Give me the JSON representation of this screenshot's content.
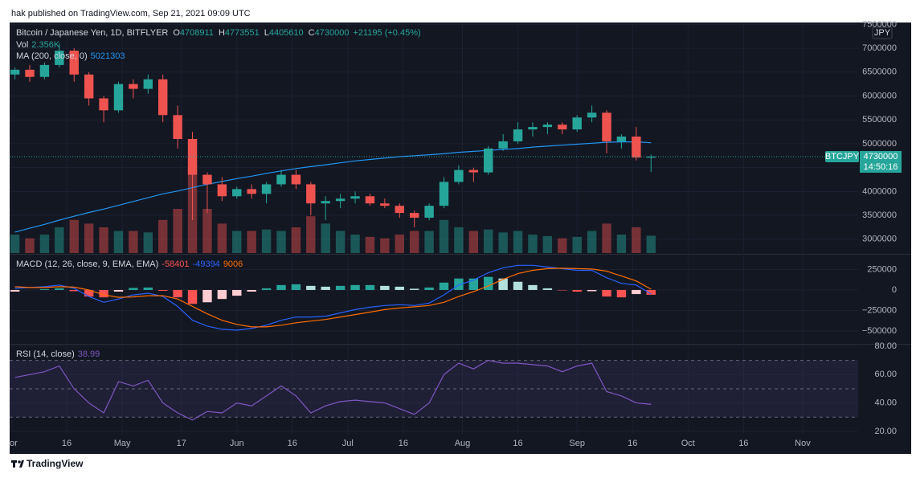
{
  "chart_data": {
    "type": "candlestick",
    "header": {
      "publisher": "hak published on TradingView.com, Sep 21, 2021 09:09 UTC",
      "symbol": "Bitcoin / Japanese Yen, 1D, BITFLYER",
      "ohlc_labels": [
        "O",
        "H",
        "L",
        "C"
      ],
      "change": "+21195 (+0.45%)",
      "ticker": "BTCJPY",
      "countdown": "14:50:16",
      "currency": "JPY",
      "brand": "TradingView"
    },
    "x": [
      "2021-04-02",
      "2021-04-06",
      "2021-04-10",
      "2021-04-14",
      "2021-04-18",
      "2021-04-22",
      "2021-04-26",
      "2021-04-30",
      "2021-05-04",
      "2021-05-08",
      "2021-05-12",
      "2021-05-16",
      "2021-05-20",
      "2021-05-24",
      "2021-05-28",
      "2021-06-01",
      "2021-06-05",
      "2021-06-09",
      "2021-06-13",
      "2021-06-17",
      "2021-06-21",
      "2021-06-25",
      "2021-06-29",
      "2021-07-03",
      "2021-07-07",
      "2021-07-11",
      "2021-07-15",
      "2021-07-19",
      "2021-07-23",
      "2021-07-27",
      "2021-07-31",
      "2021-08-04",
      "2021-08-08",
      "2021-08-12",
      "2021-08-16",
      "2021-08-20",
      "2021-08-24",
      "2021-08-28",
      "2021-09-01",
      "2021-09-05",
      "2021-09-09",
      "2021-09-13",
      "2021-09-17",
      "2021-09-21"
    ],
    "open": [
      6450000,
      6550000,
      6400000,
      6650000,
      6950000,
      6450000,
      5950000,
      5700000,
      6250000,
      6150000,
      6350000,
      5600000,
      5100000,
      4350000,
      4150000,
      3900000,
      4050000,
      3950000,
      4150000,
      4350000,
      4150000,
      3750000,
      3800000,
      3850000,
      3900000,
      3750000,
      3700000,
      3550000,
      3450000,
      3700000,
      4200000,
      4450000,
      4400000,
      4900000,
      5050000,
      5300000,
      5350000,
      5400000,
      5300000,
      5550000,
      5650000,
      5050000,
      5150000,
      4708911
    ],
    "high": [
      6600000,
      6650000,
      6700000,
      7100000,
      7000000,
      6500000,
      6000000,
      6300000,
      6350000,
      6450000,
      6450000,
      5800000,
      5250000,
      4400000,
      4300000,
      4100000,
      4150000,
      4200000,
      4450000,
      4450000,
      4200000,
      3900000,
      3950000,
      4000000,
      3950000,
      3850000,
      3750000,
      3600000,
      3750000,
      4300000,
      4550000,
      4500000,
      4950000,
      5200000,
      5450000,
      5450000,
      5450000,
      5450000,
      5600000,
      5800000,
      5700000,
      5200000,
      5350000,
      4773551
    ],
    "low": [
      6350000,
      6300000,
      6350000,
      6600000,
      6300000,
      5800000,
      5450000,
      5650000,
      5950000,
      6050000,
      5450000,
      4900000,
      3400000,
      3550000,
      3800000,
      3850000,
      3850000,
      3750000,
      4100000,
      4050000,
      3500000,
      3400000,
      3650000,
      3750000,
      3700000,
      3650000,
      3450000,
      3250000,
      3400000,
      3650000,
      4150000,
      4200000,
      4350000,
      4850000,
      5000000,
      5150000,
      5200000,
      5200000,
      5250000,
      5450000,
      4800000,
      4900000,
      4650000,
      4405610
    ],
    "close": [
      6550000,
      6400000,
      6650000,
      6950000,
      6450000,
      5950000,
      5700000,
      6250000,
      6150000,
      6350000,
      5600000,
      5100000,
      4350000,
      4150000,
      3900000,
      4050000,
      3950000,
      4150000,
      4350000,
      4150000,
      3750000,
      3800000,
      3850000,
      3900000,
      3750000,
      3700000,
      3550000,
      3450000,
      3700000,
      4200000,
      4450000,
      4400000,
      4900000,
      5050000,
      5300000,
      5350000,
      5400000,
      5300000,
      5550000,
      5650000,
      5050000,
      5150000,
      4710000,
      4730000
    ],
    "up_color": "#26a69a",
    "down_color": "#ef5350",
    "ylim": [
      2710000,
      7540000
    ],
    "yticks": [
      3000000,
      3500000,
      4000000,
      4500000,
      5000000,
      5500000,
      6000000,
      6500000,
      7000000,
      7500000
    ],
    "xlim": [
      "2021-04-01",
      "2021-11-16"
    ],
    "xticks": [
      {
        "value": "2021-04-01",
        "label": "or"
      },
      {
        "value": "2021-04-16",
        "label": "16"
      },
      {
        "value": "2021-05-01",
        "label": "May"
      },
      {
        "value": "2021-05-17",
        "label": "17"
      },
      {
        "value": "2021-06-01",
        "label": "Jun"
      },
      {
        "value": "2021-06-16",
        "label": "16"
      },
      {
        "value": "2021-07-01",
        "label": "Jul"
      },
      {
        "value": "2021-07-16",
        "label": "16"
      },
      {
        "value": "2021-08-01",
        "label": "Aug"
      },
      {
        "value": "2021-08-16",
        "label": "16"
      },
      {
        "value": "2021-09-01",
        "label": "Sep"
      },
      {
        "value": "2021-09-16",
        "label": "16"
      },
      {
        "value": "2021-10-01",
        "label": "Oct"
      },
      {
        "value": "2021-10-16",
        "label": "16"
      },
      {
        "value": "2021-11-01",
        "label": "Nov"
      }
    ],
    "volume": {
      "name": "Vol",
      "value_label": "2.356K",
      "values": [
        2500,
        2000,
        2500,
        3500,
        4500,
        4000,
        3500,
        3000,
        3000,
        2800,
        4500,
        6000,
        12000,
        6000,
        4000,
        3000,
        3000,
        3200,
        3000,
        3500,
        5000,
        4000,
        3000,
        2500,
        2200,
        2000,
        2500,
        3000,
        3000,
        4500,
        3500,
        3000,
        3200,
        2800,
        3000,
        2500,
        2300,
        2000,
        2200,
        3000,
        4000,
        2500,
        3500,
        2356
      ]
    },
    "ma": {
      "name": "MA (200, close, 0)",
      "color": "#2196f3",
      "values": [
        3150000,
        3230000,
        3310000,
        3400000,
        3480000,
        3560000,
        3630000,
        3710000,
        3790000,
        3870000,
        3950000,
        4010000,
        4080000,
        4150000,
        4210000,
        4270000,
        4320000,
        4380000,
        4430000,
        4480000,
        4520000,
        4560000,
        4600000,
        4640000,
        4670000,
        4700000,
        4730000,
        4750000,
        4770000,
        4790000,
        4820000,
        4840000,
        4860000,
        4880000,
        4900000,
        4930000,
        4950000,
        4970000,
        4990000,
        5010000,
        5030000,
        5040000,
        5040000,
        5021303
      ]
    },
    "macd": {
      "name": "MACD (12, 26, close, 9, EMA, EMA)",
      "ylim": [
        -657000,
        421000
      ],
      "yticks": [
        {
          "value": -500000,
          "label": "−500000"
        },
        {
          "value": -250000,
          "label": "−250000"
        },
        0,
        250000
      ],
      "histogram": [
        -20000,
        0,
        10000,
        20000,
        -15000,
        -80000,
        -90000,
        -20000,
        25000,
        30000,
        -10000,
        -90000,
        -170000,
        -150000,
        -110000,
        -70000,
        -20000,
        20000,
        60000,
        70000,
        50000,
        40000,
        50000,
        60000,
        60000,
        50000,
        40000,
        15000,
        30000,
        90000,
        140000,
        140000,
        160000,
        140000,
        100000,
        60000,
        20000,
        -5000,
        -20000,
        -15000,
        -80000,
        -90000,
        -50000,
        -58401
      ],
      "macd": {
        "color": "#2962ff",
        "values": [
          20000,
          30000,
          40000,
          60000,
          20000,
          -80000,
          -150000,
          -110000,
          -60000,
          -40000,
          -80000,
          -200000,
          -370000,
          -440000,
          -480000,
          -490000,
          -470000,
          -430000,
          -370000,
          -330000,
          -330000,
          -320000,
          -280000,
          -240000,
          -210000,
          -190000,
          -180000,
          -190000,
          -160000,
          -60000,
          60000,
          120000,
          210000,
          270000,
          300000,
          300000,
          280000,
          260000,
          240000,
          240000,
          150000,
          80000,
          60000,
          -49394
        ]
      },
      "signal": {
        "color": "#ff6d00",
        "values": [
          40000,
          30000,
          30000,
          40000,
          35000,
          0,
          -60000,
          -90000,
          -85000,
          -70000,
          -70000,
          -110000,
          -200000,
          -290000,
          -370000,
          -420000,
          -450000,
          -450000,
          -430000,
          -400000,
          -380000,
          -360000,
          -330000,
          -300000,
          -270000,
          -240000,
          -220000,
          -205000,
          -190000,
          -150000,
          -80000,
          -20000,
          50000,
          130000,
          200000,
          240000,
          260000,
          265000,
          260000,
          255000,
          230000,
          170000,
          110000,
          9006
        ]
      }
    },
    "rsi": {
      "name": "RSI (14, close)",
      "color": "#7e57c2",
      "ylim": [
        18.3,
        80.5
      ],
      "yticks": [
        {
          "value": 20,
          "label": "20.00"
        },
        {
          "value": 40,
          "label": "40.00"
        },
        {
          "value": 60,
          "label": "60.00"
        },
        {
          "value": 80,
          "label": "80.00"
        }
      ],
      "levels": [
        70,
        50,
        30
      ],
      "values": [
        58,
        60,
        62,
        66,
        50,
        40,
        33,
        55,
        52,
        56,
        40,
        33,
        28,
        34,
        33,
        40,
        38,
        45,
        52,
        45,
        33,
        38,
        41,
        42,
        41,
        40,
        36,
        32,
        40,
        60,
        68,
        64,
        70,
        68,
        68,
        67,
        66,
        62,
        66,
        68,
        48,
        45,
        40,
        38.99
      ]
    }
  }
}
